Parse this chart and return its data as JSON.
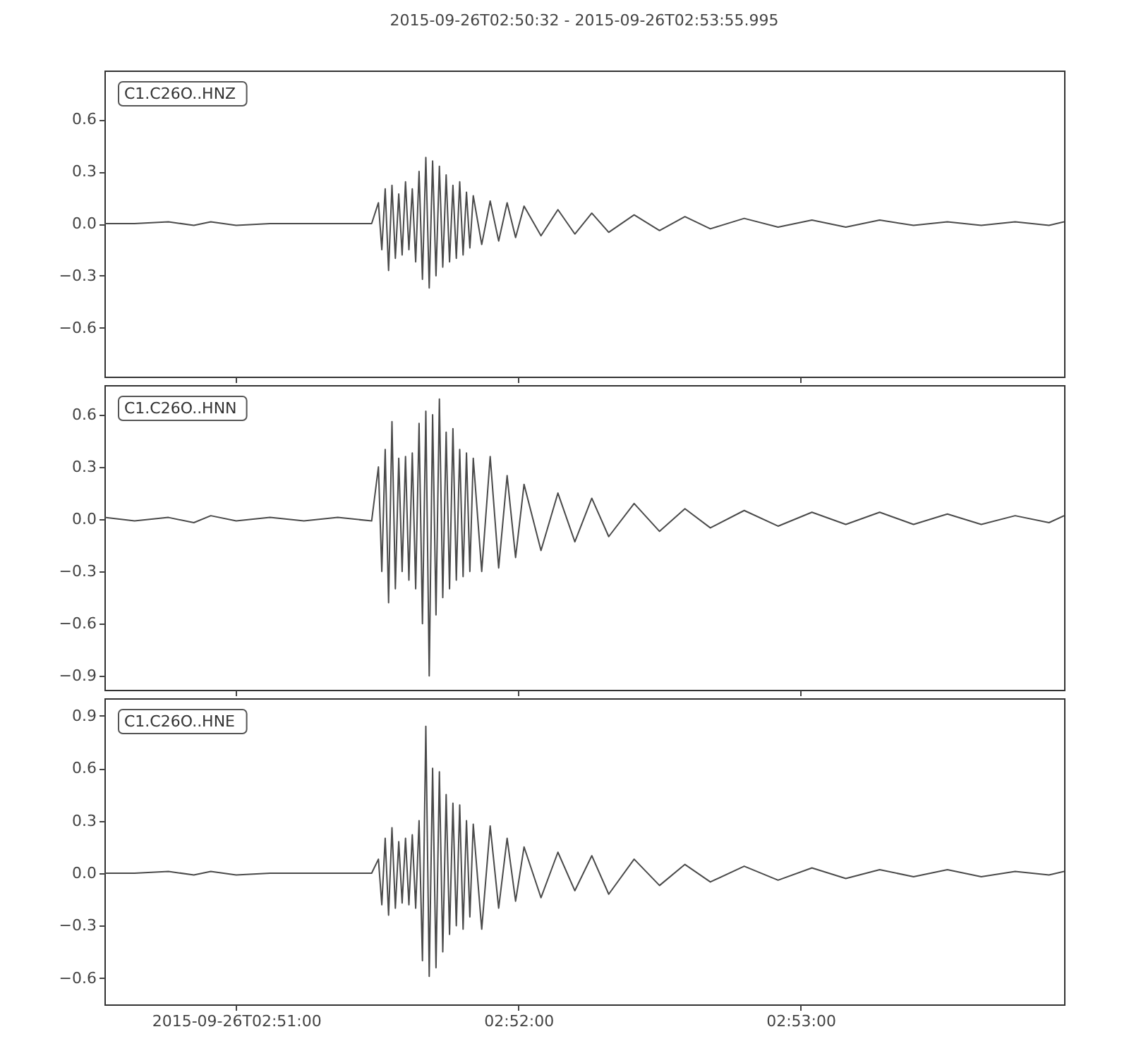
{
  "chart_data": [
    {
      "type": "line",
      "title": "2015-09-26T02:50:32  -  2015-09-26T02:53:55.995",
      "annotations": [
        "C1.C26O..HNZ"
      ],
      "tick_labels": "y",
      "xlim": [
        2.84222,
        2.89889
      ],
      "xticks": [
        {
          "value": 2.85,
          "label": null
        },
        {
          "value": 2.86667,
          "label": null
        },
        {
          "value": 2.88333,
          "label": null
        }
      ],
      "ylim": [
        -0.88,
        0.88
      ],
      "yticks": [
        {
          "value": -0.6,
          "label": "−0.6"
        },
        {
          "value": -0.3,
          "label": "−0.3"
        },
        {
          "value": 0,
          "label": "0.0"
        },
        0.3,
        0.6
      ],
      "x": [
        2.84222,
        2.844,
        2.846,
        2.8475,
        2.8485,
        2.85,
        2.852,
        2.854,
        2.856,
        2.858,
        2.8584,
        2.8586,
        2.8588,
        2.859,
        2.8592,
        2.8594,
        2.8596,
        2.8598,
        2.86,
        2.8602,
        2.8604,
        2.8606,
        2.8608,
        2.861,
        2.8612,
        2.8614,
        2.8616,
        2.8618,
        2.862,
        2.8622,
        2.8624,
        2.8626,
        2.8628,
        2.863,
        2.8632,
        2.8634,
        2.8636,
        2.8638,
        2.864,
        2.8645,
        2.865,
        2.8655,
        2.866,
        2.8665,
        2.867,
        2.868,
        2.869,
        2.87,
        2.871,
        2.872,
        2.8735,
        2.875,
        2.8765,
        2.878,
        2.88,
        2.882,
        2.884,
        2.886,
        2.888,
        2.89,
        2.892,
        2.894,
        2.896,
        2.898,
        2.89889
      ],
      "series": [
        {
          "color": "#4a4a4a",
          "values": [
            0.0,
            -0.0,
            0.01,
            -0.01,
            0.01,
            -0.01,
            0.0,
            -0.0,
            0.0,
            -0.0,
            0.12,
            -0.15,
            0.2,
            -0.27,
            0.22,
            -0.2,
            0.17,
            -0.18,
            0.24,
            -0.15,
            0.2,
            -0.22,
            0.3,
            -0.32,
            0.38,
            -0.37,
            0.36,
            -0.3,
            0.33,
            -0.25,
            0.28,
            -0.22,
            0.22,
            -0.2,
            0.24,
            -0.18,
            0.18,
            -0.14,
            0.16,
            -0.12,
            0.13,
            -0.1,
            0.12,
            -0.08,
            0.1,
            -0.07,
            0.08,
            -0.06,
            0.06,
            -0.05,
            0.05,
            -0.04,
            0.04,
            -0.03,
            0.03,
            -0.02,
            0.02,
            -0.02,
            0.02,
            -0.01,
            0.01,
            -0.01,
            0.01,
            -0.01,
            0.01
          ]
        }
      ]
    },
    {
      "type": "line",
      "annotations": [
        "C1.C26O..HNN"
      ],
      "tick_labels": "y",
      "xlim": [
        2.84222,
        2.89889
      ],
      "xticks": [
        {
          "value": 2.85,
          "label": null
        },
        {
          "value": 2.86667,
          "label": null
        },
        {
          "value": 2.88333,
          "label": null
        }
      ],
      "ylim": [
        -0.98,
        0.77
      ],
      "yticks": [
        {
          "value": -0.9,
          "label": "−0.9"
        },
        {
          "value": -0.6,
          "label": "−0.6"
        },
        {
          "value": -0.3,
          "label": "−0.3"
        },
        {
          "value": 0,
          "label": "0.0"
        },
        0.3,
        0.6
      ],
      "x": [
        2.84222,
        2.844,
        2.846,
        2.8475,
        2.8485,
        2.85,
        2.852,
        2.854,
        2.856,
        2.858,
        2.8584,
        2.8586,
        2.8588,
        2.859,
        2.8592,
        2.8594,
        2.8596,
        2.8598,
        2.86,
        2.8602,
        2.8604,
        2.8606,
        2.8608,
        2.861,
        2.8612,
        2.8614,
        2.8616,
        2.8618,
        2.862,
        2.8622,
        2.8624,
        2.8626,
        2.8628,
        2.863,
        2.8632,
        2.8634,
        2.8636,
        2.8638,
        2.864,
        2.8645,
        2.865,
        2.8655,
        2.866,
        2.8665,
        2.867,
        2.868,
        2.869,
        2.87,
        2.871,
        2.872,
        2.8735,
        2.875,
        2.8765,
        2.878,
        2.88,
        2.882,
        2.884,
        2.886,
        2.888,
        2.89,
        2.892,
        2.894,
        2.896,
        2.898,
        2.89889
      ],
      "series": [
        {
          "color": "#4a4a4a",
          "values": [
            0.01,
            -0.01,
            0.01,
            -0.02,
            0.02,
            -0.01,
            0.01,
            -0.01,
            0.01,
            -0.01,
            0.3,
            -0.3,
            0.4,
            -0.48,
            0.56,
            -0.4,
            0.35,
            -0.3,
            0.36,
            -0.35,
            0.38,
            -0.4,
            0.55,
            -0.6,
            0.62,
            -0.9,
            0.6,
            -0.55,
            0.69,
            -0.45,
            0.5,
            -0.4,
            0.52,
            -0.35,
            0.4,
            -0.33,
            0.38,
            -0.3,
            0.35,
            -0.3,
            0.36,
            -0.28,
            0.25,
            -0.22,
            0.2,
            -0.18,
            0.15,
            -0.13,
            0.12,
            -0.1,
            0.09,
            -0.07,
            0.06,
            -0.05,
            0.05,
            -0.04,
            0.04,
            -0.03,
            0.04,
            -0.03,
            0.03,
            -0.03,
            0.02,
            -0.02,
            0.02
          ]
        }
      ]
    },
    {
      "type": "line",
      "annotations": [
        "C1.C26O..HNE"
      ],
      "xlim": [
        2.84222,
        2.89889
      ],
      "xticks": [
        {
          "value": 2.85,
          "label": "2015-09-26T02:51:00"
        },
        {
          "value": 2.86667,
          "label": "02:52:00"
        },
        {
          "value": 2.88333,
          "label": "02:53:00"
        }
      ],
      "ylim": [
        -0.75,
        1.0
      ],
      "yticks": [
        {
          "value": -0.6,
          "label": "−0.6"
        },
        {
          "value": -0.3,
          "label": "−0.3"
        },
        {
          "value": 0,
          "label": "0.0"
        },
        0.3,
        0.6,
        0.9
      ],
      "x": [
        2.84222,
        2.844,
        2.846,
        2.8475,
        2.8485,
        2.85,
        2.852,
        2.854,
        2.856,
        2.858,
        2.8584,
        2.8586,
        2.8588,
        2.859,
        2.8592,
        2.8594,
        2.8596,
        2.8598,
        2.86,
        2.8602,
        2.8604,
        2.8606,
        2.8608,
        2.861,
        2.8612,
        2.8614,
        2.8616,
        2.8618,
        2.862,
        2.8622,
        2.8624,
        2.8626,
        2.8628,
        2.863,
        2.8632,
        2.8634,
        2.8636,
        2.8638,
        2.864,
        2.8645,
        2.865,
        2.8655,
        2.866,
        2.8665,
        2.867,
        2.868,
        2.869,
        2.87,
        2.871,
        2.872,
        2.8735,
        2.875,
        2.8765,
        2.878,
        2.88,
        2.882,
        2.884,
        2.886,
        2.888,
        2.89,
        2.892,
        2.894,
        2.896,
        2.898,
        2.89889
      ],
      "series": [
        {
          "color": "#4a4a4a",
          "values": [
            0.0,
            -0.0,
            0.01,
            -0.01,
            0.01,
            -0.01,
            0.0,
            -0.0,
            0.0,
            -0.0,
            0.08,
            -0.18,
            0.2,
            -0.24,
            0.26,
            -0.2,
            0.18,
            -0.17,
            0.2,
            -0.18,
            0.22,
            -0.2,
            0.3,
            -0.5,
            0.84,
            -0.59,
            0.6,
            -0.54,
            0.58,
            -0.45,
            0.45,
            -0.35,
            0.4,
            -0.3,
            0.39,
            -0.32,
            0.3,
            -0.25,
            0.28,
            -0.32,
            0.27,
            -0.2,
            0.2,
            -0.16,
            0.15,
            -0.14,
            0.12,
            -0.1,
            0.1,
            -0.12,
            0.08,
            -0.07,
            0.05,
            -0.05,
            0.04,
            -0.04,
            0.03,
            -0.03,
            0.02,
            -0.02,
            0.02,
            -0.02,
            0.01,
            -0.01,
            0.01
          ]
        }
      ]
    }
  ]
}
